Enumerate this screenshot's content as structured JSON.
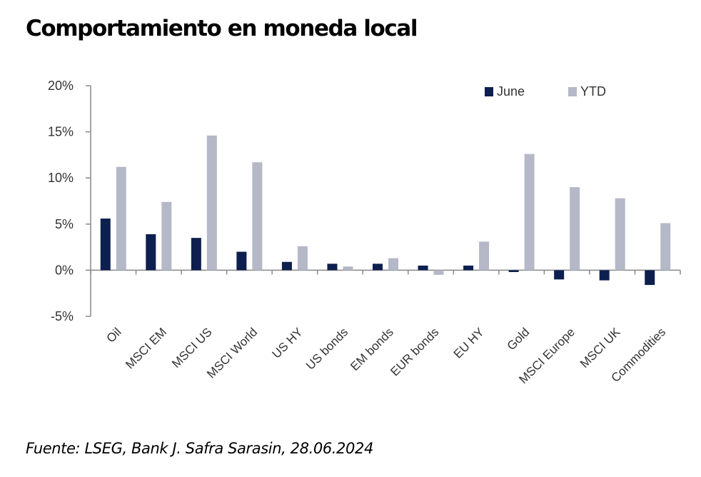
{
  "title": "Comportamiento en moneda local",
  "source": "Fuente: LSEG, Bank J. Safra Sarasin, 28.06.2024",
  "chart_data": {
    "type": "bar",
    "title": "",
    "xlabel": "",
    "ylabel": "",
    "ylim": [
      -5,
      20
    ],
    "yticks": [
      20,
      15,
      10,
      5,
      0,
      -5
    ],
    "ytick_labels": [
      "20%",
      "15%",
      "10%",
      "5%",
      "0%",
      "-5%"
    ],
    "grid": false,
    "legend_position": "top-right",
    "categories": [
      "Oil",
      "MSCI EM",
      "MSCI US",
      "MSCI World",
      "US HY",
      "US bonds",
      "EM bonds",
      "EUR bonds",
      "EU HY",
      "Gold",
      "MSCI Europe",
      "MSCI UK",
      "Commodities"
    ],
    "series": [
      {
        "name": "June",
        "color": "#0d1f4f",
        "values": [
          5.6,
          3.9,
          3.5,
          2.0,
          0.9,
          0.7,
          0.7,
          0.5,
          0.5,
          -0.2,
          -1.0,
          -1.1,
          -1.6
        ]
      },
      {
        "name": "YTD",
        "color": "#b4b8c7",
        "values": [
          11.2,
          7.4,
          14.6,
          11.7,
          2.6,
          0.4,
          1.3,
          -0.5,
          3.1,
          12.6,
          9.0,
          7.8,
          5.1
        ]
      }
    ]
  }
}
